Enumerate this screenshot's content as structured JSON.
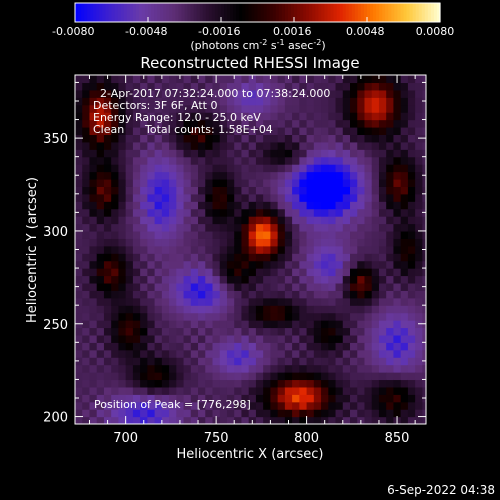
{
  "colorbar": {
    "ticks": [
      "-0.0080",
      "-0.0048",
      "-0.0016",
      "0.0016",
      "0.0048",
      "0.0080"
    ],
    "unit_prefix": "(photons cm",
    "unit_sup1": "-2",
    "unit_mid": " s",
    "unit_sup2": "-1",
    "unit_end": " asec",
    "unit_sup3": "-2",
    "unit_close": ")"
  },
  "annotations": {
    "time_range": "2-Apr-2017 07:32:24.000 to 07:38:24.000",
    "detectors": "Detectors: 3F 6F, Att 0",
    "energy": "Energy Range: 12.0 - 25.0 keV",
    "clean_method": "Clean",
    "total_counts": "Total counts: 1.58E+04",
    "peak": "Position of Peak = [776,298]"
  },
  "footer": {
    "date": "6-Sep-2022 04:38"
  },
  "colors": {
    "palette": [
      "#0000ff",
      "#3c1fd0",
      "#6a3ba8",
      "#5d2d74",
      "#2a0f30",
      "#000000",
      "#3a0000",
      "#8a0a00",
      "#e02400",
      "#ff7a00",
      "#ffc83a",
      "#ffffd2"
    ]
  },
  "chart_data": {
    "type": "heatmap",
    "title": "Reconstructed RHESSI Image",
    "xlabel": "Heliocentric X (arcsec)",
    "ylabel": "Heliocentric Y (arcsec)",
    "xlim": [
      672,
      866
    ],
    "ylim": [
      196,
      384
    ],
    "xticks": [
      700,
      750,
      800,
      850
    ],
    "yticks": [
      200,
      250,
      300,
      350
    ],
    "color_range": [
      -0.008,
      0.008
    ],
    "peak_position": [
      776,
      298
    ],
    "sources": [
      {
        "x": 776,
        "y": 298,
        "sx": 8,
        "sy": 9,
        "amp": 0.008
      },
      {
        "x": 686,
        "y": 362,
        "sx": 8,
        "sy": 12,
        "amp": 0.006
      },
      {
        "x": 688,
        "y": 322,
        "sx": 7,
        "sy": 10,
        "amp": 0.0042
      },
      {
        "x": 692,
        "y": 278,
        "sx": 7,
        "sy": 9,
        "amp": 0.004
      },
      {
        "x": 702,
        "y": 247,
        "sx": 7,
        "sy": 9,
        "amp": 0.0036
      },
      {
        "x": 716,
        "y": 222,
        "sx": 9,
        "sy": 7,
        "amp": 0.0032
      },
      {
        "x": 740,
        "y": 352,
        "sx": 9,
        "sy": 7,
        "amp": 0.0036
      },
      {
        "x": 752,
        "y": 318,
        "sx": 6,
        "sy": 10,
        "amp": 0.0034
      },
      {
        "x": 760,
        "y": 278,
        "sx": 8,
        "sy": 8,
        "amp": 0.0034
      },
      {
        "x": 782,
        "y": 256,
        "sx": 10,
        "sy": 5,
        "amp": 0.0036
      },
      {
        "x": 812,
        "y": 245,
        "sx": 7,
        "sy": 7,
        "amp": 0.0028
      },
      {
        "x": 830,
        "y": 272,
        "sx": 6,
        "sy": 7,
        "amp": 0.0046
      },
      {
        "x": 838,
        "y": 368,
        "sx": 10,
        "sy": 11,
        "amp": 0.0064
      },
      {
        "x": 851,
        "y": 326,
        "sx": 7,
        "sy": 10,
        "amp": 0.0044
      },
      {
        "x": 856,
        "y": 290,
        "sx": 6,
        "sy": 10,
        "amp": 0.003
      },
      {
        "x": 788,
        "y": 341,
        "sx": 9,
        "sy": 6,
        "amp": 0.0026
      },
      {
        "x": 796,
        "y": 211,
        "sx": 13,
        "sy": 8,
        "amp": 0.007
      },
      {
        "x": 848,
        "y": 210,
        "sx": 9,
        "sy": 8,
        "amp": 0.0034
      },
      {
        "x": 810,
        "y": 323,
        "sx": 14,
        "sy": 12,
        "amp": -0.007
      },
      {
        "x": 720,
        "y": 318,
        "sx": 9,
        "sy": 16,
        "amp": -0.0038
      },
      {
        "x": 742,
        "y": 268,
        "sx": 12,
        "sy": 9,
        "amp": -0.004
      },
      {
        "x": 710,
        "y": 202,
        "sx": 14,
        "sy": 8,
        "amp": -0.0036
      },
      {
        "x": 850,
        "y": 240,
        "sx": 10,
        "sy": 12,
        "amp": -0.0034
      },
      {
        "x": 762,
        "y": 232,
        "sx": 10,
        "sy": 7,
        "amp": -0.003
      },
      {
        "x": 812,
        "y": 282,
        "sx": 9,
        "sy": 9,
        "amp": -0.003
      },
      {
        "x": 770,
        "y": 372,
        "sx": 10,
        "sy": 7,
        "amp": -0.0026
      }
    ]
  }
}
